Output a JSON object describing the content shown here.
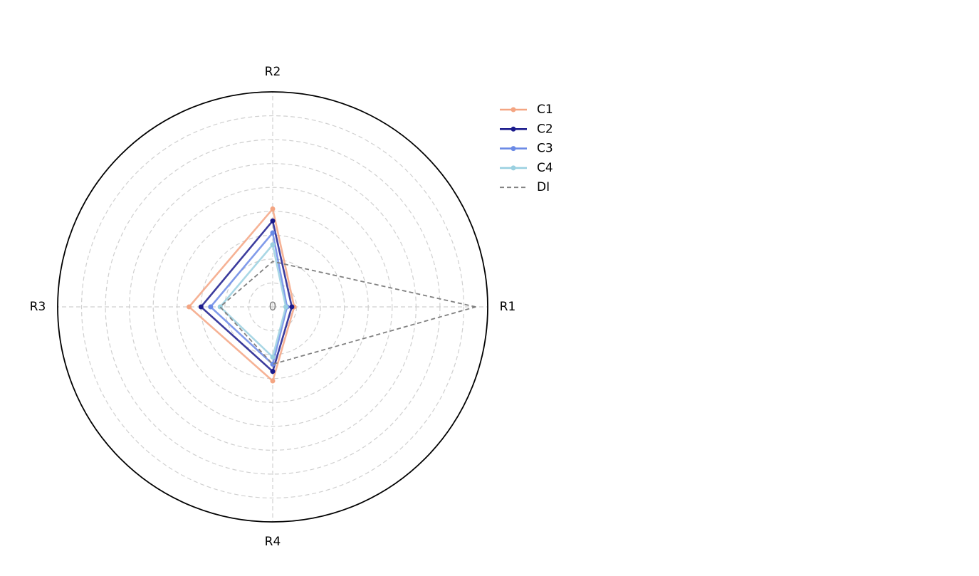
{
  "chart_data": {
    "type": "radar",
    "categories": [
      "R1",
      "R2",
      "R3",
      "R4"
    ],
    "rlim": [
      0,
      9
    ],
    "rticks": [
      0
    ],
    "rgrid": [
      1,
      2,
      3,
      4,
      5,
      6,
      7,
      8
    ],
    "grid": true,
    "legend": "right",
    "series": [
      {
        "name": "C1",
        "color": "#f4a582",
        "values": [
          0.9,
          4.1,
          3.5,
          3.1
        ]
      },
      {
        "name": "C2",
        "color": "#1a1a8c",
        "values": [
          0.8,
          3.6,
          3.0,
          2.7
        ]
      },
      {
        "name": "C3",
        "color": "#6b8ae6",
        "values": [
          0.6,
          3.1,
          2.6,
          2.4
        ]
      },
      {
        "name": "C4",
        "color": "#9ad0e0",
        "values": [
          0.55,
          2.6,
          2.2,
          2.1
        ]
      },
      {
        "name": "DI",
        "color": "#808080",
        "dashed": true,
        "values": [
          8.5,
          1.9,
          2.2,
          2.4
        ]
      }
    ]
  }
}
